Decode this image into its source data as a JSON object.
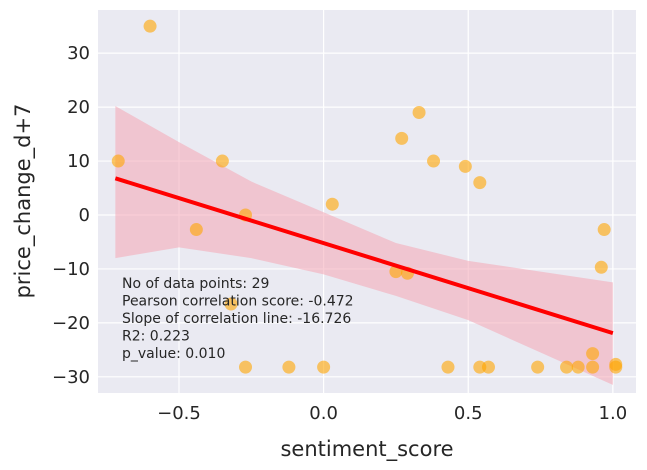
{
  "chart_data": {
    "type": "scatter",
    "xlabel": "sentiment_score",
    "ylabel": "price_change_d+7",
    "xlim": [
      -0.78,
      1.08
    ],
    "ylim": [
      -33,
      38
    ],
    "xticks": [
      -0.5,
      0.0,
      0.5,
      1.0
    ],
    "xtick_labels": [
      "−0.5",
      "0.0",
      "0.5",
      "1.0"
    ],
    "yticks": [
      -30,
      -20,
      -10,
      0,
      10,
      20,
      30
    ],
    "ytick_labels": [
      "−30",
      "−20",
      "−10",
      "0",
      "10",
      "20",
      "30"
    ],
    "grid": true,
    "background": "#eaeaf2",
    "point_color": "#ffa500",
    "line_color": "#ff0000",
    "band_color": "#f4a6b4",
    "points": [
      {
        "x": -0.6,
        "y": 35
      },
      {
        "x": -0.71,
        "y": 10
      },
      {
        "x": -0.35,
        "y": 10
      },
      {
        "x": -0.27,
        "y": 0
      },
      {
        "x": -0.44,
        "y": -2.7
      },
      {
        "x": -0.32,
        "y": -16.5
      },
      {
        "x": -0.27,
        "y": -28.2
      },
      {
        "x": -0.12,
        "y": -28.2
      },
      {
        "x": 0.0,
        "y": -28.2
      },
      {
        "x": 0.03,
        "y": 2
      },
      {
        "x": 0.25,
        "y": -10.5
      },
      {
        "x": 0.29,
        "y": -10.8
      },
      {
        "x": 0.27,
        "y": 14.2
      },
      {
        "x": 0.33,
        "y": 19
      },
      {
        "x": 0.38,
        "y": 10
      },
      {
        "x": 0.43,
        "y": -28.2
      },
      {
        "x": 0.49,
        "y": 9
      },
      {
        "x": 0.54,
        "y": 6
      },
      {
        "x": 0.54,
        "y": -28.2
      },
      {
        "x": 0.57,
        "y": -28.2
      },
      {
        "x": 0.74,
        "y": -28.2
      },
      {
        "x": 0.84,
        "y": -28.2
      },
      {
        "x": 0.88,
        "y": -28.2
      },
      {
        "x": 0.93,
        "y": -28.2
      },
      {
        "x": 0.93,
        "y": -25.7
      },
      {
        "x": 0.96,
        "y": -9.7
      },
      {
        "x": 0.97,
        "y": -2.7
      },
      {
        "x": 1.01,
        "y": -27.7
      },
      {
        "x": 1.01,
        "y": -28.2
      }
    ],
    "regression": {
      "x": [
        -0.72,
        1.0
      ],
      "y": [
        6.8,
        -21.9
      ]
    },
    "confidence_band": {
      "x": [
        -0.72,
        -0.5,
        -0.25,
        0.0,
        0.25,
        0.5,
        0.75,
        1.0
      ],
      "upper": [
        20.2,
        13.5,
        6.2,
        0.5,
        -5.2,
        -8.5,
        -10.5,
        -12.5
      ],
      "lower": [
        -8.0,
        -6.0,
        -8.0,
        -11.0,
        -15.0,
        -19.5,
        -25.5,
        -31.5
      ]
    },
    "annotations": [
      "No of data points: 29",
      "Pearson correlation score: -0.472",
      "Slope of correlation line: -16.726",
      "R2: 0.223",
      "p_value: 0.010"
    ]
  }
}
